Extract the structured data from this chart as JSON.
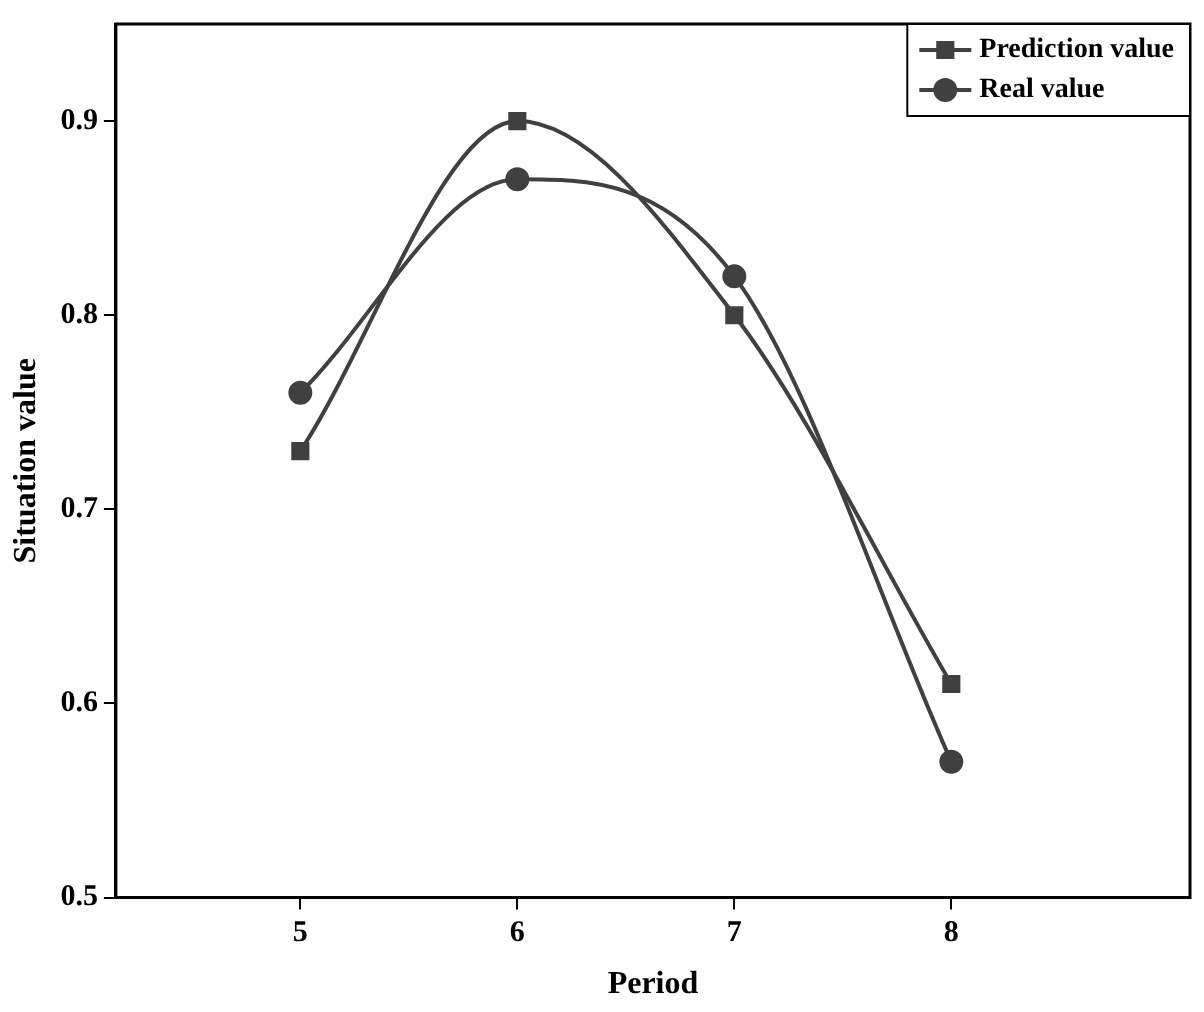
{
  "chart_data": {
    "type": "line",
    "xlabel": "Period",
    "ylabel": "Situation value",
    "x": [
      5,
      6,
      7,
      8
    ],
    "xlim": [
      4.15,
      9.1
    ],
    "xticks": [
      5,
      6,
      7,
      8
    ],
    "ylim": [
      0.5,
      0.95
    ],
    "yticks": [
      0.5,
      0.6,
      0.7,
      0.8,
      0.9
    ],
    "grid": false,
    "legend": "top right",
    "series": [
      {
        "name": "Prediction value",
        "color": "#404040",
        "marker": "square",
        "values": [
          0.73,
          0.9,
          0.8,
          0.61
        ]
      },
      {
        "name": "Real value",
        "color": "#404040",
        "marker": "circle",
        "values": [
          0.76,
          0.87,
          0.82,
          0.57
        ]
      }
    ]
  }
}
